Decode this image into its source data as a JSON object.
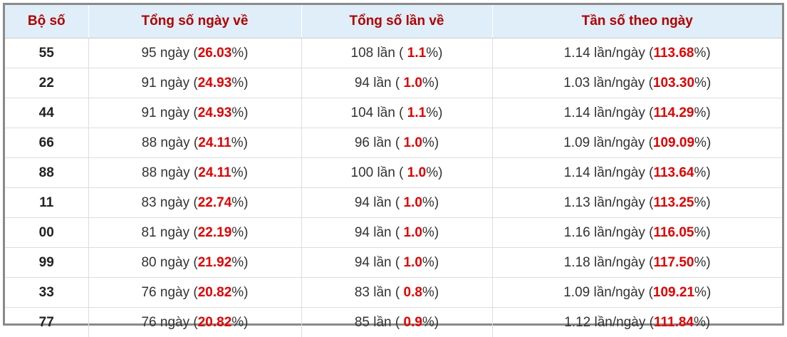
{
  "table": {
    "header": [
      "Bộ số",
      "Tổng số ngày về",
      "Tổng số lần về",
      "Tần số theo ngày"
    ],
    "rows": [
      [
        "55",
        [
          "95 ngày (",
          "26.03",
          "%)"
        ],
        [
          "108 lần ( ",
          "1.1",
          "%)"
        ],
        [
          "1.14 lần/ngày (",
          "113.68",
          "%)"
        ]
      ],
      [
        "22",
        [
          "91 ngày (",
          "24.93",
          "%)"
        ],
        [
          "94 lần ( ",
          "1.0",
          "%)"
        ],
        [
          "1.03 lần/ngày (",
          "103.30",
          "%)"
        ]
      ],
      [
        "44",
        [
          "91 ngày (",
          "24.93",
          "%)"
        ],
        [
          "104 lần ( ",
          "1.1",
          "%)"
        ],
        [
          "1.14 lần/ngày (",
          "114.29",
          "%)"
        ]
      ],
      [
        "66",
        [
          "88 ngày (",
          "24.11",
          "%)"
        ],
        [
          "96 lần ( ",
          "1.0",
          "%)"
        ],
        [
          "1.09 lần/ngày (",
          "109.09",
          "%)"
        ]
      ],
      [
        "88",
        [
          "88 ngày (",
          "24.11",
          "%)"
        ],
        [
          "100 lần ( ",
          "1.0",
          "%)"
        ],
        [
          "1.14 lần/ngày (",
          "113.64",
          "%)"
        ]
      ],
      [
        "11",
        [
          "83 ngày (",
          "22.74",
          "%)"
        ],
        [
          "94 lần ( ",
          "1.0",
          "%)"
        ],
        [
          "1.13 lần/ngày (",
          "113.25",
          "%)"
        ]
      ],
      [
        "00",
        [
          "81 ngày (",
          "22.19",
          "%)"
        ],
        [
          "94 lần ( ",
          "1.0",
          "%)"
        ],
        [
          "1.16 lần/ngày (",
          "116.05",
          "%)"
        ]
      ],
      [
        "99",
        [
          "80 ngày (",
          "21.92",
          "%)"
        ],
        [
          "94 lần ( ",
          "1.0",
          "%)"
        ],
        [
          "1.18 lần/ngày (",
          "117.50",
          "%)"
        ]
      ],
      [
        "33",
        [
          "76 ngày (",
          "20.82",
          "%)"
        ],
        [
          "83 lần ( ",
          "0.8",
          "%)"
        ],
        [
          "1.09 lần/ngày (",
          "109.21",
          "%)"
        ]
      ],
      [
        "77",
        [
          "76 ngày (",
          "20.82",
          "%)"
        ],
        [
          "85 lần ( ",
          "0.9",
          "%)"
        ],
        [
          "1.12 lần/ngày (",
          "111.84",
          "%)"
        ]
      ]
    ]
  }
}
